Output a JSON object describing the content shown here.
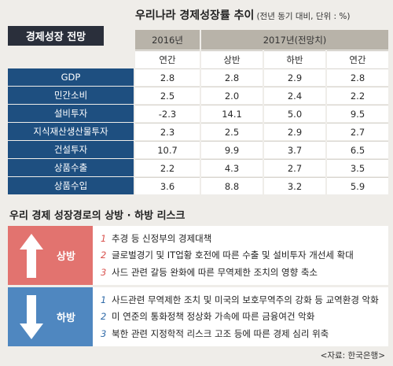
{
  "badge": "경제성장 전망",
  "title": "우리나라 경제성장률 추이",
  "unit": "(전년 동기 대비, 단위 : %)",
  "header": {
    "y2016": "2016년",
    "y2017": "2017년(전망치)",
    "sub": [
      "연간",
      "상반",
      "하반",
      "연간"
    ]
  },
  "rows": [
    {
      "label": "GDP",
      "values": [
        "2.8",
        "2.8",
        "2.9",
        "2.8"
      ]
    },
    {
      "label": "민간소비",
      "values": [
        "2.5",
        "2.0",
        "2.4",
        "2.2"
      ]
    },
    {
      "label": "설비투자",
      "values": [
        "-2.3",
        "14.1",
        "5.0",
        "9.5"
      ]
    },
    {
      "label": "지식재산생산물투자",
      "values": [
        "2.3",
        "2.5",
        "2.9",
        "2.7"
      ]
    },
    {
      "label": "건설투자",
      "values": [
        "10.7",
        "9.9",
        "3.7",
        "6.5"
      ]
    },
    {
      "label": "상품수출",
      "values": [
        "2.2",
        "4.3",
        "2.7",
        "3.5"
      ]
    },
    {
      "label": "상품수입",
      "values": [
        "3.6",
        "8.8",
        "3.2",
        "5.9"
      ]
    }
  ],
  "section_title": "우리 경제 성장경로의 상방 · 하방 리스크",
  "upside": {
    "label": "상방",
    "items": [
      {
        "n": "1",
        "text": "추경 등 신정부의 경제대책"
      },
      {
        "n": "2",
        "text": "글로벌경기 및 IT업황 호전에 따른 수출 및 설비투자 개선세 확대"
      },
      {
        "n": "3",
        "text": "사드 관련 갈등 완화에 따른 무역제한 조치의 영향 축소"
      }
    ]
  },
  "downside": {
    "label": "하방",
    "items": [
      {
        "n": "1",
        "text": "사드관련 무역제한 조치 및 미국의 보호무역주의 강화 등 교역환경 악화"
      },
      {
        "n": "2",
        "text": "미 연준의 통화정책 정상화 가속에 따른 금융여건 악화"
      },
      {
        "n": "3",
        "text": "북한 관련 지정학적 리스크 고조 등에 따른 경제 심리 위축"
      }
    ]
  },
  "source": "<자료: 한국은행>",
  "colors": {
    "upside": "#e2736f",
    "downside": "#4f87c0",
    "row_label": "#1e4f80",
    "badge": "#2a2f3b"
  }
}
